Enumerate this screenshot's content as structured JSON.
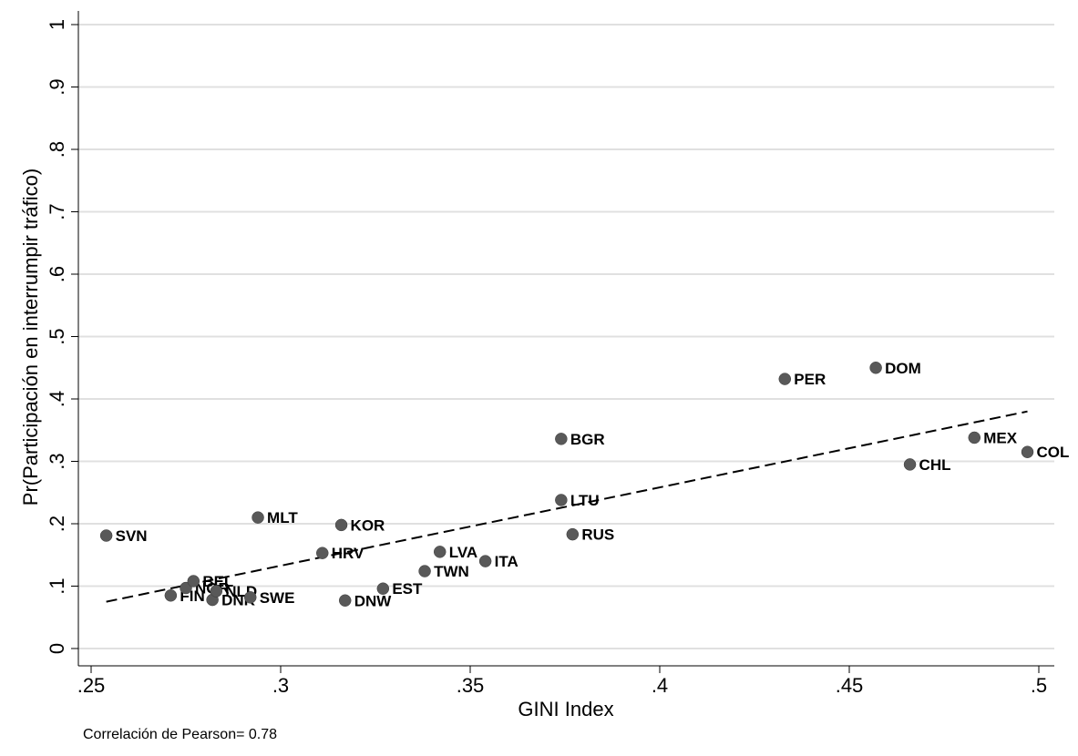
{
  "chart_data": {
    "type": "scatter",
    "xlabel": "GINI Index",
    "ylabel": "Pr(Participación en interrumpir tráfico)",
    "xlim": [
      0.25,
      0.5
    ],
    "ylim": [
      0,
      1
    ],
    "xticks": [
      0.25,
      0.3,
      0.35,
      0.4,
      0.45,
      0.5
    ],
    "xtick_labels": [
      ".25",
      ".3",
      ".35",
      ".4",
      ".45",
      ".5"
    ],
    "yticks": [
      0,
      0.1,
      0.2,
      0.3,
      0.4,
      0.5,
      0.6,
      0.7,
      0.8,
      0.9,
      1
    ],
    "ytick_labels": [
      "0",
      ".1",
      ".2",
      ".3",
      ".4",
      ".5",
      ".6",
      ".7",
      ".8",
      ".9",
      "1"
    ],
    "grid": true,
    "marker_color": "#595959",
    "points": [
      {
        "label": "SVN",
        "x": 0.254,
        "y": 0.181
      },
      {
        "label": "FIN",
        "x": 0.271,
        "y": 0.085
      },
      {
        "label": "NOR",
        "x": 0.275,
        "y": 0.097
      },
      {
        "label": "BEL",
        "x": 0.277,
        "y": 0.108
      },
      {
        "label": "DNK",
        "x": 0.282,
        "y": 0.078
      },
      {
        "label": "NLD",
        "x": 0.283,
        "y": 0.092
      },
      {
        "label": "SWE",
        "x": 0.292,
        "y": 0.082
      },
      {
        "label": "MLT",
        "x": 0.294,
        "y": 0.21
      },
      {
        "label": "HRV",
        "x": 0.311,
        "y": 0.153
      },
      {
        "label": "KOR",
        "x": 0.316,
        "y": 0.198
      },
      {
        "label": "DNW",
        "x": 0.317,
        "y": 0.077
      },
      {
        "label": "EST",
        "x": 0.327,
        "y": 0.096
      },
      {
        "label": "TWN",
        "x": 0.338,
        "y": 0.124
      },
      {
        "label": "LVA",
        "x": 0.342,
        "y": 0.155
      },
      {
        "label": "ITA",
        "x": 0.354,
        "y": 0.14
      },
      {
        "label": "BGR",
        "x": 0.374,
        "y": 0.336
      },
      {
        "label": "LTU",
        "x": 0.374,
        "y": 0.238
      },
      {
        "label": "RUS",
        "x": 0.377,
        "y": 0.183
      },
      {
        "label": "PER",
        "x": 0.433,
        "y": 0.432
      },
      {
        "label": "DOM",
        "x": 0.457,
        "y": 0.45
      },
      {
        "label": "CHL",
        "x": 0.466,
        "y": 0.295
      },
      {
        "label": "MEX",
        "x": 0.483,
        "y": 0.338
      },
      {
        "label": "COL",
        "x": 0.497,
        "y": 0.315
      }
    ],
    "fit_line": {
      "style": "dashed",
      "x": [
        0.254,
        0.497
      ],
      "y": [
        0.075,
        0.38
      ]
    },
    "annotation": "Correlación de Pearson= 0.78"
  }
}
